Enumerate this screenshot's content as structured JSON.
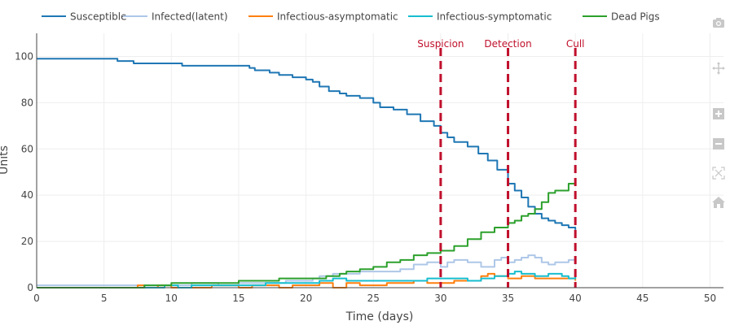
{
  "chart_data": {
    "type": "line",
    "title": "",
    "xlabel": "Time (days)",
    "ylabel": "Units",
    "xlim": [
      0,
      51
    ],
    "ylim": [
      0,
      110
    ],
    "xticks": [
      0,
      5,
      10,
      15,
      20,
      25,
      30,
      35,
      40,
      45,
      50
    ],
    "yticks": [
      0,
      20,
      40,
      60,
      80,
      100
    ],
    "grid": true,
    "legend": {
      "placement": "top",
      "orientation": "horizontal"
    },
    "series": [
      {
        "name": "Susceptible",
        "color": "#1f77b4",
        "x": [
          0,
          5.7,
          6.0,
          6.5,
          7.2,
          8.0,
          9.5,
          10.8,
          11.5,
          12.5,
          15.5,
          15.8,
          16.2,
          17.3,
          18.0,
          19.0,
          20.0,
          20.5,
          21.0,
          21.7,
          22.5,
          23.0,
          24.0,
          25.0,
          25.5,
          26.5,
          27.5,
          28.5,
          29.5,
          30.0,
          30.5,
          31.0,
          32.0,
          32.8,
          33.5,
          34.2,
          35.0,
          35.5,
          36.0,
          36.5,
          37.0,
          37.5,
          38.0,
          38.5,
          39.0,
          39.5,
          40.0
        ],
        "values": [
          99,
          99,
          98,
          98,
          97,
          97,
          97,
          96,
          96,
          96,
          96,
          95,
          94,
          93,
          92,
          91,
          90,
          89,
          87,
          85,
          84,
          83,
          82,
          80,
          78,
          77,
          75,
          72,
          70,
          67,
          65,
          63,
          61,
          58,
          55,
          51,
          45,
          42,
          39,
          35,
          32,
          30,
          29,
          28,
          27,
          26,
          25
        ]
      },
      {
        "name": "Infected(latent)",
        "color": "#aec7e8",
        "x": [
          0,
          7.0,
          10.0,
          11.5,
          12.5,
          13.5,
          15.0,
          16.0,
          17.5,
          18.5,
          19.5,
          20.5,
          21.0,
          22.0,
          23.0,
          24.0,
          25.0,
          26.0,
          27.0,
          28.0,
          29.0,
          29.5,
          30.0,
          30.5,
          31.0,
          32.0,
          33.0,
          34.0,
          34.5,
          35.0,
          35.5,
          36.0,
          36.5,
          37.0,
          37.5,
          38.0,
          38.5,
          39.0,
          39.5,
          40.0
        ],
        "values": [
          1,
          1,
          1,
          2,
          2,
          1,
          2,
          2,
          2,
          3,
          3,
          4,
          5,
          6,
          6,
          7,
          7,
          7,
          8,
          10,
          11,
          11,
          9,
          11,
          12,
          11,
          9,
          12,
          13,
          11,
          12,
          13,
          14,
          13,
          11,
          10,
          11,
          11,
          12,
          10
        ]
      },
      {
        "name": "Infectious-asymptomatic",
        "color": "#ff7f0e",
        "x": [
          0,
          7.0,
          7.5,
          8.0,
          9.0,
          10.0,
          12.5,
          13.0,
          14.0,
          15.0,
          16.0,
          17.0,
          18.0,
          19.0,
          20.0,
          21.0,
          22.0,
          23.0,
          24.0,
          25.0,
          26.0,
          27.0,
          28.0,
          29.0,
          30.0,
          31.0,
          32.0,
          33.0,
          33.5,
          34.0,
          35.0,
          36.0,
          37.0,
          38.0,
          39.0,
          39.5,
          40.0
        ],
        "values": [
          0,
          0,
          1,
          0,
          1,
          0,
          0,
          1,
          1,
          0,
          1,
          1,
          0,
          1,
          1,
          2,
          0,
          2,
          1,
          1,
          2,
          2,
          3,
          2,
          2,
          3,
          3,
          5,
          6,
          5,
          4,
          5,
          4,
          4,
          4,
          4,
          3
        ]
      },
      {
        "name": "Infectious-symptomatic",
        "color": "#17becf",
        "x": [
          0,
          8.0,
          9.5,
          10.5,
          11.5,
          13.0,
          14.0,
          15.5,
          17.0,
          18.5,
          20.0,
          21.0,
          22.0,
          23.0,
          24.0,
          25.0,
          26.0,
          27.0,
          28.0,
          29.0,
          30.0,
          31.0,
          32.0,
          33.0,
          34.0,
          35.0,
          35.5,
          36.0,
          37.0,
          38.0,
          39.0,
          39.5,
          40.0
        ],
        "values": [
          0,
          0,
          1,
          0,
          1,
          1,
          1,
          1,
          2,
          2,
          2,
          3,
          4,
          3,
          3,
          3,
          3,
          3,
          3,
          4,
          4,
          4,
          3,
          4,
          5,
          6,
          7,
          6,
          5,
          6,
          5,
          4,
          5
        ]
      },
      {
        "name": "Dead Pigs",
        "color": "#2ca02c",
        "x": [
          0,
          7.0,
          8.0,
          9.0,
          10.0,
          11.5,
          13.0,
          15.0,
          16.0,
          18.0,
          19.5,
          20.5,
          21.5,
          22.5,
          23.0,
          24.0,
          25.0,
          26.0,
          27.0,
          28.0,
          29.0,
          30.0,
          31.0,
          32.0,
          33.0,
          34.0,
          35.0,
          35.5,
          36.0,
          36.5,
          37.0,
          37.5,
          38.0,
          38.5,
          39.0,
          39.5,
          40.0
        ],
        "values": [
          0,
          0,
          1,
          1,
          2,
          2,
          2,
          3,
          3,
          4,
          4,
          4,
          5,
          6,
          7,
          8,
          9,
          11,
          12,
          14,
          15,
          16,
          18,
          21,
          24,
          26,
          28,
          29,
          31,
          32,
          34,
          37,
          41,
          42,
          42,
          45,
          47
        ]
      }
    ],
    "annotations": [
      {
        "label": "Suspicion",
        "x": 30,
        "color": "#c0102c",
        "style": "dashed-vertical"
      },
      {
        "label": "Detection",
        "x": 35,
        "color": "#c0102c",
        "style": "dashed-vertical"
      },
      {
        "label": "Cull",
        "x": 40,
        "color": "#c0102c",
        "style": "dashed-vertical"
      }
    ]
  },
  "modebar": {
    "buttons": [
      {
        "name": "camera-icon",
        "label": "Download plot as png"
      },
      {
        "name": "pan-icon",
        "label": "Pan"
      },
      {
        "name": "zoom-in-icon",
        "label": "Zoom in"
      },
      {
        "name": "zoom-out-icon",
        "label": "Zoom out"
      },
      {
        "name": "autoscale-icon",
        "label": "Autoscale"
      },
      {
        "name": "home-icon",
        "label": "Reset axes"
      }
    ]
  }
}
